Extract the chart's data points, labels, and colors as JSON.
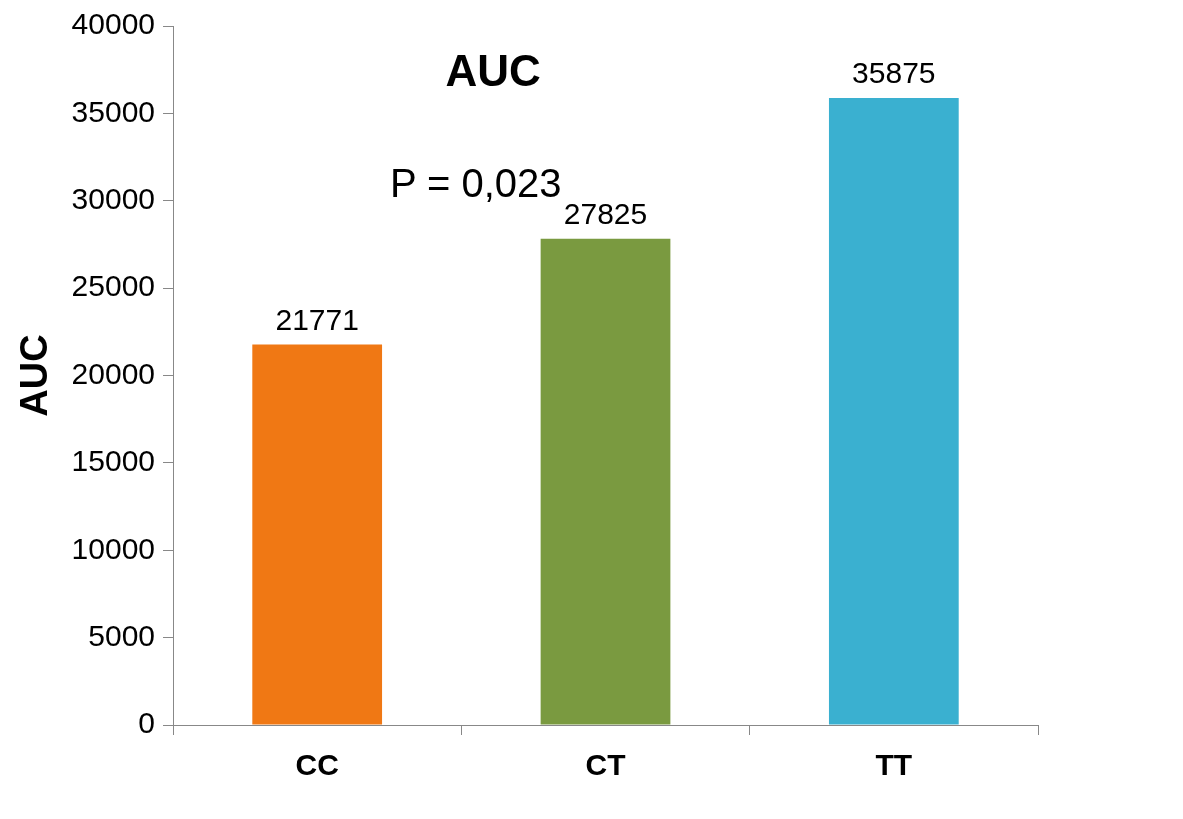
{
  "chart_data": {
    "type": "bar",
    "title": "AUC",
    "ylabel": "AUC",
    "categories": [
      "CC",
      "CT",
      "TT"
    ],
    "values": [
      21771,
      27825,
      35875
    ],
    "colors": [
      "#f07814",
      "#7a9a40",
      "#3ab0d0"
    ],
    "ylim": [
      0,
      40000
    ],
    "yticks": [
      0,
      5000,
      10000,
      15000,
      20000,
      25000,
      30000,
      35000,
      40000
    ],
    "data_labels": true,
    "grid": false,
    "legend": false,
    "annotations": [
      "P = 0,023"
    ]
  }
}
